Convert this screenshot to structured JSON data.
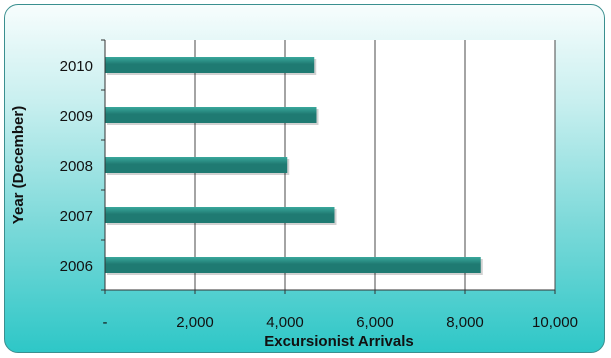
{
  "chart_data": {
    "type": "bar",
    "orientation": "horizontal",
    "title": "",
    "xlabel": "Excursionist Arrivals",
    "ylabel": "Year (December)",
    "categories": [
      "2006",
      "2007",
      "2008",
      "2009",
      "2010"
    ],
    "values": [
      8350,
      5100,
      4050,
      4700,
      4650
    ],
    "xlim": [
      0,
      10000
    ],
    "x_ticks": [
      0,
      2000,
      4000,
      6000,
      8000,
      10000
    ],
    "x_tick_labels": [
      "-",
      "2,000",
      "4,000",
      "6,000",
      "8,000",
      "10,000"
    ],
    "grid": "vertical",
    "legend": "none",
    "colors": {
      "bar": "#1f7a72",
      "bar_highlight": "#3aa89c",
      "plot_background": "#ffffff",
      "gridline": "#4a4a4a",
      "frame_border": "#3a8f8f",
      "frame_gradient_top": "#f7fdfd",
      "frame_gradient_bottom": "#2ec7c7"
    }
  }
}
